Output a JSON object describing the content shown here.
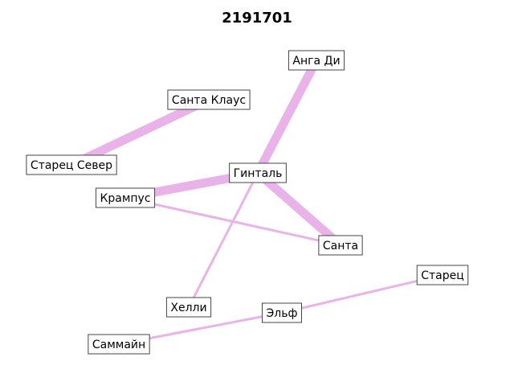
{
  "title": "2191701",
  "edge_color": "#e9b3ea",
  "nodes": [
    {
      "id": "anga",
      "label": "Анга Ди"
    },
    {
      "id": "santa_claus",
      "label": "Санта Клаус"
    },
    {
      "id": "starets_sever",
      "label": "Старец Север"
    },
    {
      "id": "gintal",
      "label": "Гинталь"
    },
    {
      "id": "krampus",
      "label": "Крампус"
    },
    {
      "id": "santa",
      "label": "Санта"
    },
    {
      "id": "starets",
      "label": "Старец"
    },
    {
      "id": "elf",
      "label": "Эльф"
    },
    {
      "id": "helli",
      "label": "Хелли"
    },
    {
      "id": "samain",
      "label": "Саммайн"
    }
  ],
  "edges": [
    {
      "source": "anga",
      "target": "gintal",
      "weight": 3
    },
    {
      "source": "santa_claus",
      "target": "starets_sever",
      "weight": 3
    },
    {
      "source": "gintal",
      "target": "krampus",
      "weight": 3
    },
    {
      "source": "gintal",
      "target": "santa",
      "weight": 3
    },
    {
      "source": "gintal",
      "target": "helli",
      "weight": 1
    },
    {
      "source": "krampus",
      "target": "santa",
      "weight": 1
    },
    {
      "source": "starets",
      "target": "elf",
      "weight": 1
    },
    {
      "source": "elf",
      "target": "samain",
      "weight": 1
    }
  ]
}
